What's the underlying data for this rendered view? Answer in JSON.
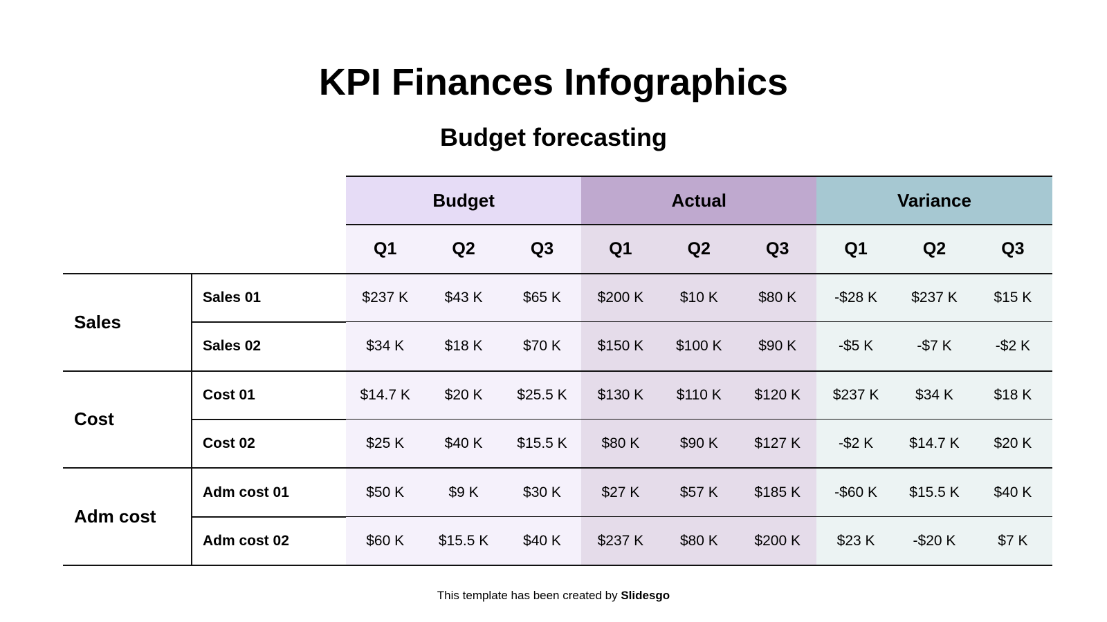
{
  "title": "KPI Finances Infographics",
  "subtitle": "Budget forecasting",
  "colors": {
    "budget_header": "#e6dcf6",
    "actual_header": "#bfa9cf",
    "variance_header": "#a6c8d2",
    "budget_cell": "#f5f1fb",
    "actual_cell": "#e5dcea",
    "variance_cell": "#ecf3f3"
  },
  "table": {
    "groups": [
      "Budget",
      "Actual",
      "Variance"
    ],
    "quarters": [
      "Q1",
      "Q2",
      "Q3",
      "Q1",
      "Q2",
      "Q3",
      "Q1",
      "Q2",
      "Q3"
    ],
    "categories": [
      {
        "label": "Sales",
        "rows": [
          {
            "label": "Sales 01",
            "values": [
              "$237 K",
              "$43 K",
              "$65 K",
              "$200 K",
              "$10 K",
              "$80 K",
              "-$28 K",
              "$237 K",
              "$15 K"
            ]
          },
          {
            "label": "Sales 02",
            "values": [
              "$34 K",
              "$18 K",
              "$70 K",
              "$150 K",
              "$100 K",
              "$90 K",
              "-$5 K",
              "-$7 K",
              "-$2 K"
            ]
          }
        ]
      },
      {
        "label": "Cost",
        "rows": [
          {
            "label": "Cost 01",
            "values": [
              "$14.7 K",
              "$20 K",
              "$25.5 K",
              "$130 K",
              "$110 K",
              "$120 K",
              "$237 K",
              "$34 K",
              "$18 K"
            ]
          },
          {
            "label": "Cost 02",
            "values": [
              "$25 K",
              "$40 K",
              "$15.5 K",
              "$80 K",
              "$90 K",
              "$127 K",
              "-$2 K",
              "$14.7 K",
              "$20 K"
            ]
          }
        ]
      },
      {
        "label": "Adm cost",
        "rows": [
          {
            "label": "Adm cost 01",
            "values": [
              "$50 K",
              "$9 K",
              "$30 K",
              "$27 K",
              "$57 K",
              "$185 K",
              "-$60 K",
              "$15.5 K",
              "$40 K"
            ]
          },
          {
            "label": "Adm cost 02",
            "values": [
              "$60 K",
              "$15.5 K",
              "$40 K",
              "$237 K",
              "$80 K",
              "$200 K",
              "$23 K",
              "-$20 K",
              "$7 K"
            ]
          }
        ]
      }
    ]
  },
  "footer": {
    "text": "This template has been created by ",
    "brand": "Slidesgo"
  }
}
